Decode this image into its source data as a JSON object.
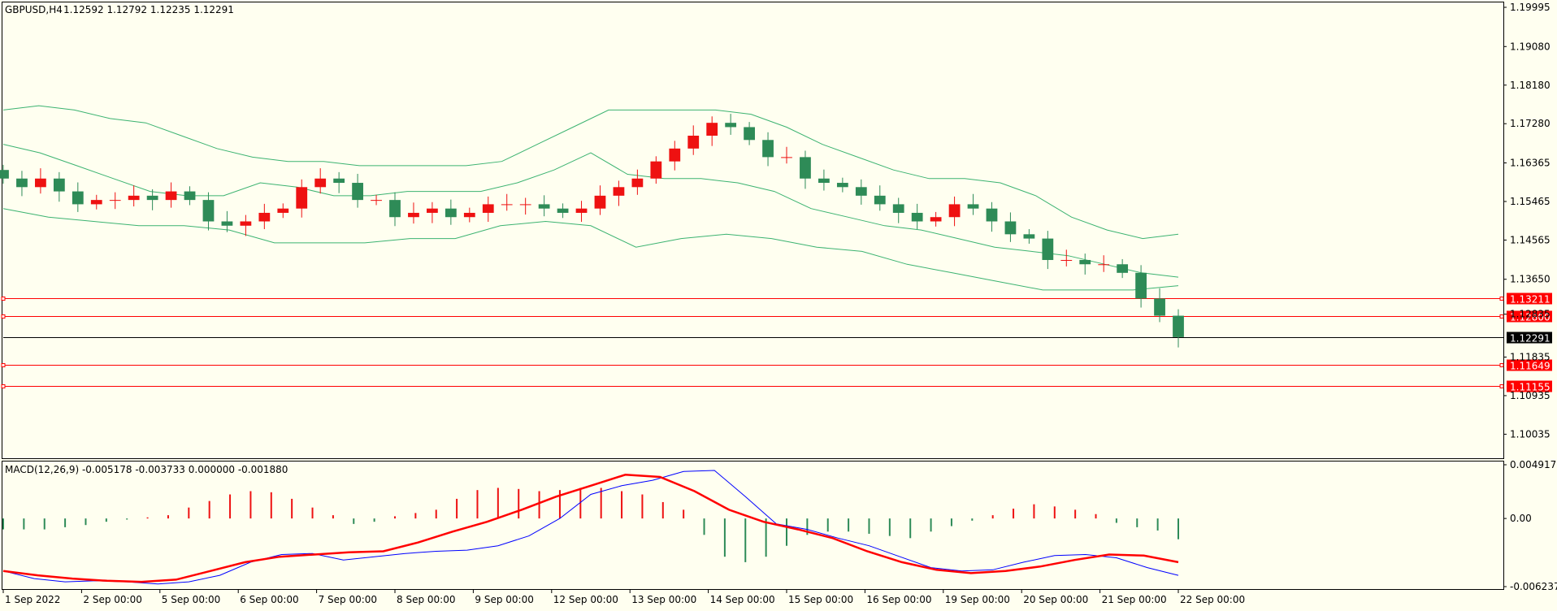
{
  "header": {
    "symbol_tf": "GBPUSD,H4",
    "ohlc": "1.12592 1.12792 1.12235 1.12291",
    "macd_label": "MACD(12,26,9) -0.005178 -0.003733 0.000000 -0.001880"
  },
  "colors": {
    "background": "#FFFFF0",
    "bull": "#EE1111",
    "bear": "#2E8B57",
    "band": "#3CB371",
    "level": "#FF0000",
    "macd_line": "#0000FF",
    "signal_line": "#FF0000",
    "grid_border": "#000000"
  },
  "price_axis": {
    "ticks": [
      "1.19995",
      "1.19080",
      "1.18180",
      "1.17280",
      "1.16365",
      "1.15465",
      "1.14565",
      "1.13650",
      "1.12835",
      "1.11835",
      "1.10935",
      "1.10035"
    ],
    "range": [
      1.0955,
      1.2009
    ]
  },
  "levels": [
    {
      "value": 1.13211,
      "label": "1.13211"
    },
    {
      "value": 1.128,
      "label": "1.12800"
    },
    {
      "value": 1.11649,
      "label": "1.11649"
    },
    {
      "value": 1.11155,
      "label": "1.11155"
    }
  ],
  "current_price": {
    "value": 1.12291,
    "label": "1.12291"
  },
  "macd_axis": {
    "ticks": [
      "0.004917",
      "0.00",
      "-0.006237"
    ],
    "values": [
      0.004917,
      0,
      -0.006237
    ]
  },
  "time_axis": {
    "labels": [
      "1 Sep 2022",
      "2 Sep 00:00",
      "5 Sep 00:00",
      "6 Sep 00:00",
      "7 Sep 00:00",
      "8 Sep 00:00",
      "9 Sep 00:00",
      "12 Sep 00:00",
      "13 Sep 00:00",
      "14 Sep 00:00",
      "15 Sep 00:00",
      "16 Sep 00:00",
      "19 Sep 00:00",
      "20 Sep 00:00",
      "21 Sep 00:00",
      "22 Sep 00:00"
    ],
    "label_bar_index": [
      0,
      6,
      12,
      18,
      24,
      30,
      36,
      42,
      48,
      54,
      60,
      66,
      72,
      78,
      84,
      90
    ]
  },
  "chart_data": {
    "type": "candlestick",
    "symbol": "GBPUSD",
    "timeframe": "H4",
    "close": [
      1.16,
      1.158,
      1.16,
      1.157,
      1.154,
      1.155,
      1.155,
      1.156,
      1.155,
      1.157,
      1.155,
      1.15,
      1.149,
      1.15,
      1.152,
      1.153,
      1.158,
      1.16,
      1.159,
      1.155,
      1.155,
      1.151,
      1.152,
      1.153,
      1.151,
      1.152,
      1.154,
      1.154,
      1.154,
      1.153,
      1.152,
      1.153,
      1.156,
      1.158,
      1.16,
      1.164,
      1.167,
      1.17,
      1.173,
      1.172,
      1.169,
      1.165,
      1.165,
      1.16,
      1.159,
      1.158,
      1.156,
      1.154,
      1.152,
      1.15,
      1.151,
      1.154,
      1.153,
      1.15,
      1.147,
      1.146,
      1.141,
      1.141,
      1.14,
      1.14,
      1.138,
      1.132,
      1.128,
      1.123
    ],
    "series": [
      {
        "name": "Upper band",
        "values": [
          1.176,
          1.177,
          1.176,
          1.174,
          1.173,
          1.17,
          1.167,
          1.165,
          1.164,
          1.164,
          1.163,
          1.163,
          1.163,
          1.163,
          1.164,
          1.168,
          1.172,
          1.176,
          1.176,
          1.176,
          1.176,
          1.175,
          1.172,
          1.168,
          1.165,
          1.162,
          1.16,
          1.16,
          1.159,
          1.156,
          1.151,
          1.148,
          1.146,
          1.147
        ]
      },
      {
        "name": "Middle band",
        "values": [
          1.168,
          1.166,
          1.163,
          1.16,
          1.157,
          1.156,
          1.156,
          1.159,
          1.158,
          1.156,
          1.156,
          1.157,
          1.157,
          1.157,
          1.159,
          1.162,
          1.166,
          1.161,
          1.16,
          1.16,
          1.159,
          1.157,
          1.153,
          1.151,
          1.149,
          1.148,
          1.146,
          1.144,
          1.143,
          1.142,
          1.14,
          1.138,
          1.137
        ]
      },
      {
        "name": "Lower band",
        "values": [
          1.153,
          1.151,
          1.15,
          1.149,
          1.149,
          1.148,
          1.145,
          1.145,
          1.145,
          1.146,
          1.146,
          1.149,
          1.15,
          1.149,
          1.144,
          1.146,
          1.147,
          1.146,
          1.144,
          1.143,
          1.14,
          1.138,
          1.136,
          1.134,
          1.134,
          1.134,
          1.135
        ]
      }
    ],
    "macd": {
      "histogram": [
        -0.001,
        -0.001,
        -0.001,
        -0.0008,
        -0.0006,
        -0.0003,
        -0.0001,
        0.0001,
        0.0003,
        0.001,
        0.0016,
        0.0022,
        0.0025,
        0.0024,
        0.0018,
        0.001,
        0.0003,
        -0.0005,
        -0.0003,
        0.0002,
        0.0005,
        0.0008,
        0.0018,
        0.0026,
        0.0028,
        0.0027,
        0.0025,
        0.0026,
        0.0028,
        0.0028,
        0.0025,
        0.0022,
        0.0015,
        0.0008,
        -0.0015,
        -0.0035,
        -0.004,
        -0.0035,
        -0.0025,
        -0.0015,
        -0.0012,
        -0.0012,
        -0.0014,
        -0.0016,
        -0.0018,
        -0.0012,
        -0.0007,
        -0.0002,
        0.0003,
        0.0009,
        0.0013,
        0.0011,
        0.0008,
        0.0004,
        -0.0004,
        -0.0008,
        -0.0011,
        -0.0019
      ],
      "macd_line": [
        -0.0048,
        -0.0055,
        -0.0058,
        -0.0057,
        -0.0058,
        -0.006,
        -0.0058,
        -0.0052,
        -0.004,
        -0.0033,
        -0.0032,
        -0.0038,
        -0.0035,
        -0.0032,
        -0.003,
        -0.0029,
        -0.0025,
        -0.0016,
        0.0,
        0.0022,
        0.003,
        0.0035,
        0.0043,
        0.0044,
        0.002,
        -0.0005,
        -0.001,
        -0.0018,
        -0.0025,
        -0.0035,
        -0.0045,
        -0.0048,
        -0.0047,
        -0.004,
        -0.0034,
        -0.0033,
        -0.0036,
        -0.0045,
        -0.0052
      ],
      "signal_line": [
        -0.0048,
        -0.0052,
        -0.0055,
        -0.0057,
        -0.0058,
        -0.0056,
        -0.0048,
        -0.004,
        -0.0035,
        -0.0033,
        -0.0031,
        -0.003,
        -0.0022,
        -0.0012,
        -0.0003,
        0.0008,
        0.002,
        0.003,
        0.004,
        0.0038,
        0.0025,
        0.0008,
        -0.0003,
        -0.001,
        -0.0018,
        -0.003,
        -0.004,
        -0.0047,
        -0.005,
        -0.0048,
        -0.0044,
        -0.0038,
        -0.0033,
        -0.0034,
        -0.004
      ]
    }
  }
}
